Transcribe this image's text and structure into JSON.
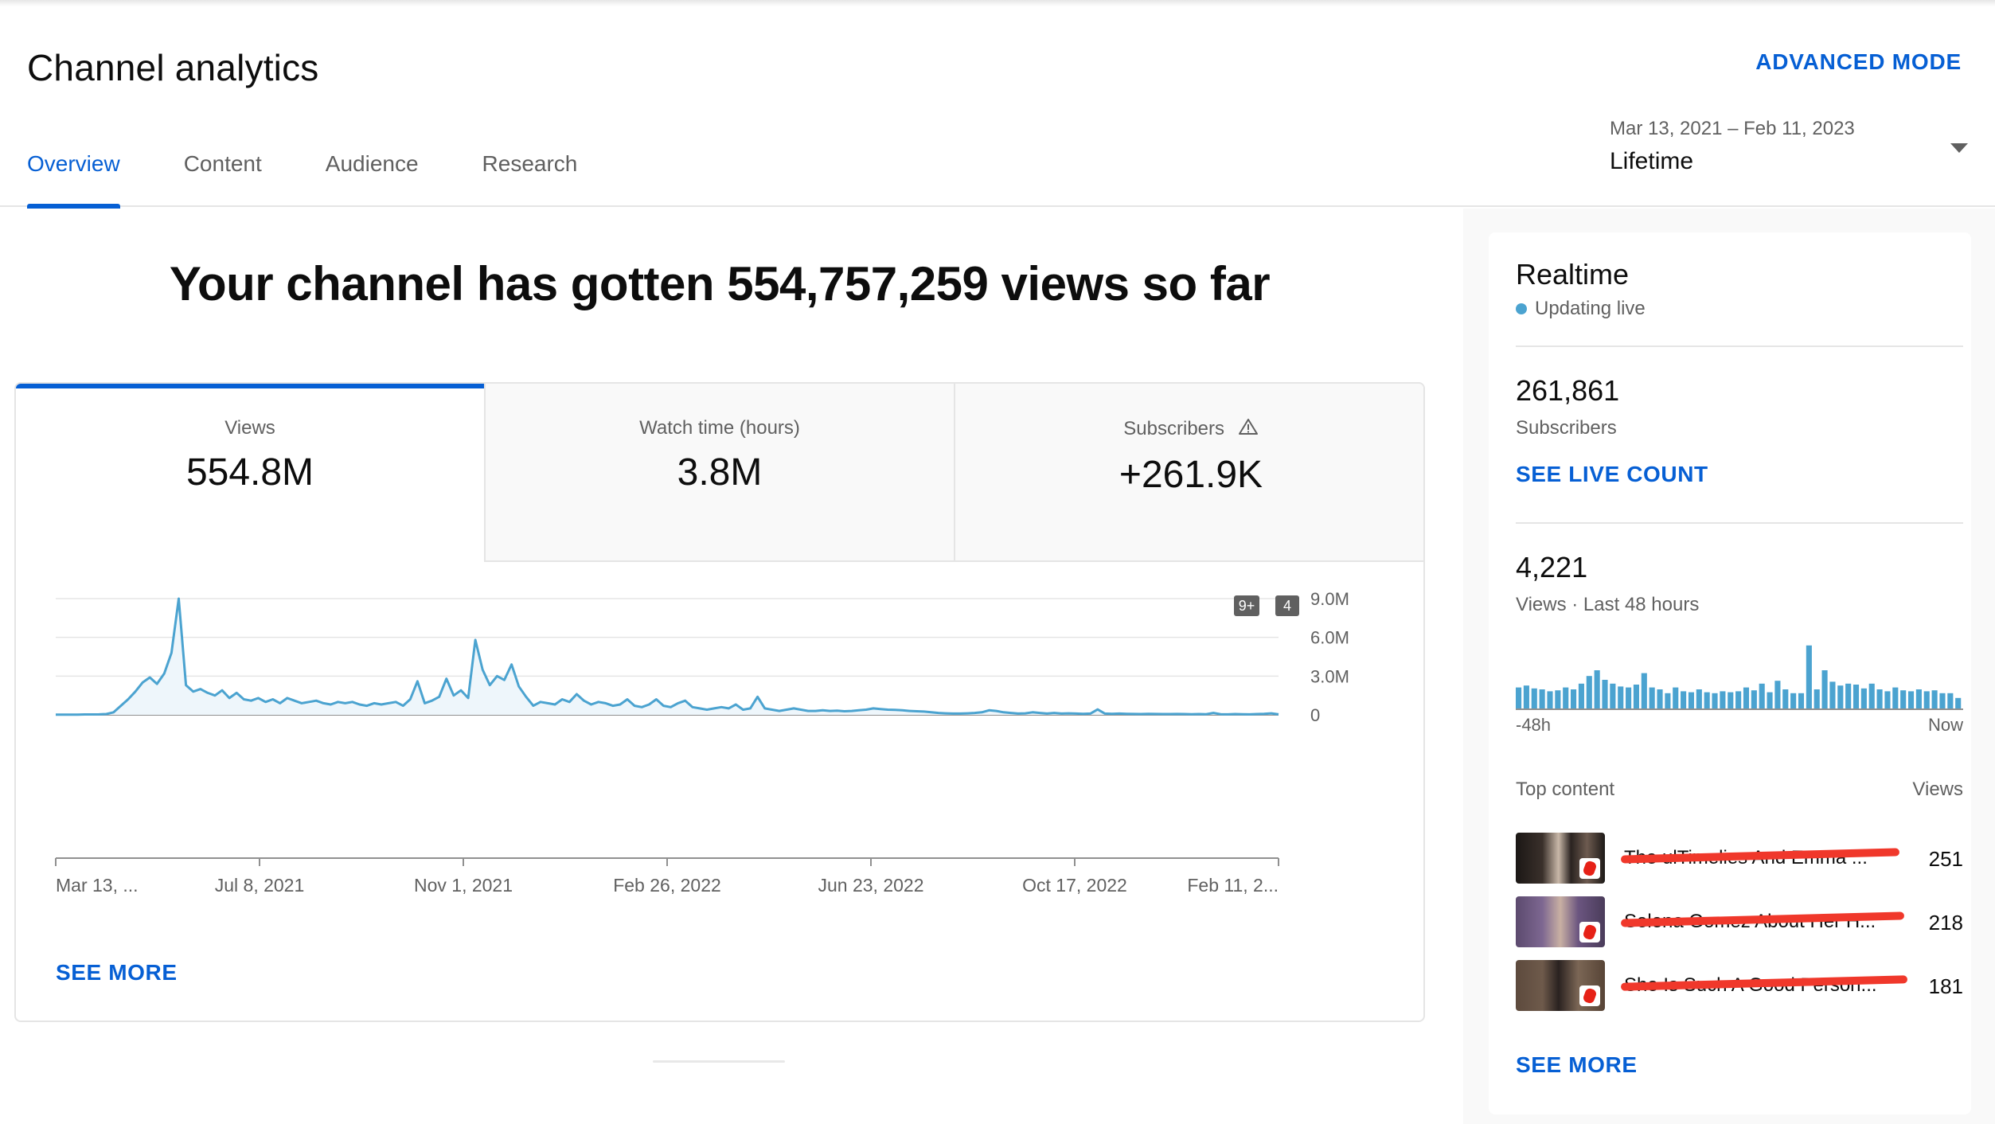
{
  "header": {
    "title": "Channel analytics",
    "advanced_mode": "ADVANCED MODE",
    "tabs": [
      {
        "label": "Overview",
        "active": true
      },
      {
        "label": "Content",
        "active": false
      },
      {
        "label": "Audience",
        "active": false
      },
      {
        "label": "Research",
        "active": false
      }
    ],
    "date_range": "Mar 13, 2021 – Feb 11, 2023",
    "period": "Lifetime"
  },
  "main": {
    "headline": "Your channel has gotten 554,757,259 views so far",
    "metrics": [
      {
        "label": "Views",
        "value": "554.8M",
        "active": true
      },
      {
        "label": "Watch time (hours)",
        "value": "3.8M",
        "active": false
      },
      {
        "label": "Subscribers",
        "value": "+261.9K",
        "active": false,
        "icon": "warning-icon"
      }
    ],
    "markers": [
      "9+",
      "4"
    ],
    "see_more": "SEE MORE"
  },
  "chart_data": {
    "type": "area",
    "ylabel": "",
    "xlabel": "",
    "y_ticks": [
      "9.0M",
      "6.0M",
      "3.0M",
      "0"
    ],
    "y_tick_values": [
      9000000,
      6000000,
      3000000,
      0
    ],
    "ylim": [
      0,
      9500000
    ],
    "x_tick_labels": [
      "Mar 13, ...",
      "Jul 8, 2021",
      "Nov 1, 2021",
      "Feb 26, 2022",
      "Jun 23, 2022",
      "Oct 17, 2022",
      "Feb 11, 2..."
    ],
    "grid": true,
    "color": "#4ba3d0",
    "fill": "#eef6fb",
    "series": [
      {
        "values": [
          20000,
          20000,
          20000,
          20000,
          30000,
          30000,
          40000,
          60000,
          200000,
          700000,
          1200000,
          1800000,
          2500000,
          2900000,
          2400000,
          3200000,
          4800000,
          9000000,
          2300000,
          1800000,
          2000000,
          1700000,
          1500000,
          1900000,
          1300000,
          1700000,
          1200000,
          1100000,
          1300000,
          1000000,
          1200000,
          900000,
          1300000,
          1100000,
          900000,
          1000000,
          1100000,
          900000,
          800000,
          1000000,
          900000,
          1000000,
          800000,
          700000,
          900000,
          800000,
          900000,
          1000000,
          700000,
          1200000,
          2600000,
          900000,
          1100000,
          1400000,
          2800000,
          1500000,
          1900000,
          1300000,
          5800000,
          3500000,
          2300000,
          3000000,
          2700000,
          3900000,
          2200000,
          1400000,
          700000,
          1000000,
          900000,
          800000,
          1200000,
          1000000,
          1600000,
          1100000,
          800000,
          1000000,
          900000,
          700000,
          800000,
          1200000,
          700000,
          600000,
          800000,
          1200000,
          700000,
          600000,
          900000,
          1100000,
          600000,
          500000,
          400000,
          500000,
          600000,
          500000,
          800000,
          400000,
          500000,
          1400000,
          500000,
          400000,
          300000,
          400000,
          500000,
          400000,
          300000,
          300000,
          350000,
          300000,
          320000,
          280000,
          300000,
          350000,
          400000,
          500000,
          450000,
          400000,
          380000,
          350000,
          300000,
          280000,
          250000,
          200000,
          150000,
          120000,
          100000,
          100000,
          120000,
          150000,
          200000,
          350000,
          300000,
          200000,
          150000,
          100000,
          120000,
          200000,
          150000,
          100000,
          150000,
          100000,
          120000,
          100000,
          80000,
          100000,
          420000,
          100000,
          80000,
          100000,
          80000,
          70000,
          60000,
          80000,
          70000,
          60000,
          60000,
          70000,
          60000,
          50000,
          60000,
          50000,
          150000,
          50000,
          40000,
          60000,
          50000,
          40000,
          60000,
          80000,
          120000,
          40000
        ]
      }
    ]
  },
  "realtime": {
    "title": "Realtime",
    "status": "Updating live",
    "subscribers_value": "261,861",
    "subscribers_label": "Subscribers",
    "see_live_count": "SEE LIVE COUNT",
    "views_value": "4,221",
    "views_label": "Views · Last 48 hours",
    "bar_values": [
      22,
      24,
      21,
      20,
      18,
      19,
      22,
      20,
      26,
      34,
      40,
      30,
      26,
      23,
      22,
      25,
      37,
      22,
      20,
      16,
      22,
      18,
      17,
      20,
      17,
      16,
      18,
      17,
      18,
      22,
      19,
      26,
      17,
      29,
      20,
      16,
      16,
      66,
      20,
      40,
      28,
      24,
      26,
      25,
      21,
      26,
      20,
      18,
      22,
      19,
      18,
      20,
      18,
      19,
      16,
      16,
      11
    ],
    "bar_max": 70,
    "axis_start": "-48h",
    "axis_end": "Now",
    "top_content_label": "Top content",
    "views_col_label": "Views",
    "top_content": [
      {
        "title": "The ulTimelies And Emma ...",
        "views": "251"
      },
      {
        "title": "Selena Gomez About Her H...",
        "views": "218"
      },
      {
        "title": "She Is Such A Good Person...",
        "views": "181"
      }
    ],
    "see_more": "SEE MORE"
  },
  "colors": {
    "accent": "#065fd4",
    "chart_line": "#4ba3d0",
    "redaction": "#f0382b"
  }
}
